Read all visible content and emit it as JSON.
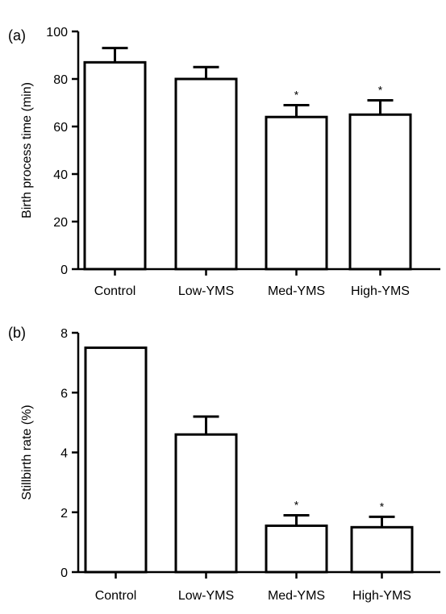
{
  "chart_data": [
    {
      "panel_label": "(a)",
      "type": "bar",
      "categories": [
        "Control",
        "Low-YMS",
        "Med-YMS",
        "High-YMS"
      ],
      "values": [
        87,
        80,
        64,
        65
      ],
      "errors": [
        6,
        5,
        5,
        6
      ],
      "significance": [
        "",
        "",
        "*",
        "*"
      ],
      "ylabel": "Birth process time (min)",
      "xlabel": "",
      "ylim": [
        0,
        100
      ],
      "yticks": [
        "0",
        "20",
        "40",
        "60",
        "80",
        "100"
      ],
      "grid": false
    },
    {
      "panel_label": "(b)",
      "type": "bar",
      "categories": [
        "Control",
        "Low-YMS",
        "Med-YMS",
        "High-YMS"
      ],
      "values": [
        7.5,
        4.6,
        1.55,
        1.5
      ],
      "errors": [
        0,
        0.6,
        0.35,
        0.35
      ],
      "significance": [
        "",
        "",
        "*",
        "*"
      ],
      "ylabel": "Stillbirth rate (%)",
      "xlabel": "",
      "ylim": [
        0,
        8
      ],
      "yticks": [
        "0",
        "2",
        "4",
        "6",
        "8"
      ],
      "grid": false
    }
  ]
}
